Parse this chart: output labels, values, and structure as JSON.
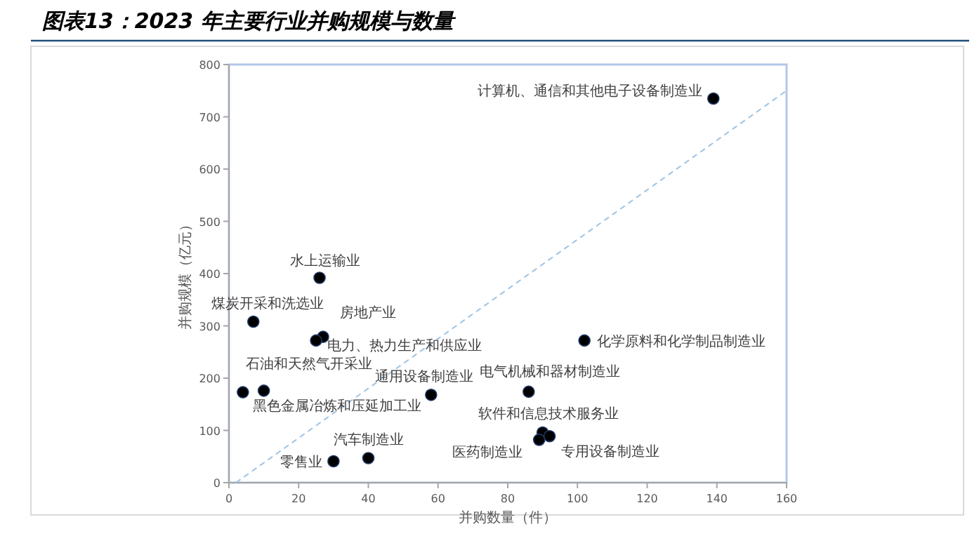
{
  "chart_data": {
    "type": "scatter",
    "title": "图表13：2023 年主要行业并购规模与数量",
    "xlabel": "并购数量（件）",
    "ylabel": "并购规模（亿元）",
    "xlim": [
      0,
      160
    ],
    "xticks": [
      0,
      20,
      40,
      60,
      80,
      100,
      120,
      140,
      160
    ],
    "ylim": [
      0,
      800
    ],
    "yticks": [
      0,
      100,
      200,
      300,
      400,
      500,
      600,
      700,
      800
    ],
    "grid": false,
    "series": [
      {
        "marker": "circle",
        "color": "#000000",
        "x": [
          7,
          4,
          10,
          30,
          26,
          27,
          25,
          40,
          58,
          86,
          90,
          89,
          92,
          102,
          139
        ],
        "values": [
          308,
          173,
          176,
          41,
          392,
          279,
          272,
          47,
          168,
          174,
          96,
          82,
          89,
          272,
          735
        ]
      },
      {
        "type": "line",
        "color": "#9dc3e6",
        "line_style": "dashed",
        "marker": "none",
        "x": [
          2,
          160
        ],
        "values": [
          0,
          750
        ]
      }
    ],
    "annotations": [
      {
        "text": "煤炭开采和洗选业",
        "x": 7,
        "y": 308
      },
      {
        "text": "石油和天然气开采业",
        "x": 4,
        "y": 173
      },
      {
        "text": "黑色金属冶炼和压延加工业",
        "x": 10,
        "y": 176
      },
      {
        "text": "零售业",
        "x": 30,
        "y": 41
      },
      {
        "text": "水上运输业",
        "x": 26,
        "y": 392
      },
      {
        "text": "房地产业",
        "x": 27,
        "y": 279
      },
      {
        "text": "电力、热力生产和供应业",
        "x": 25,
        "y": 272
      },
      {
        "text": "汽车制造业",
        "x": 40,
        "y": 47
      },
      {
        "text": "通用设备制造业",
        "x": 58,
        "y": 168
      },
      {
        "text": "电气机械和器材制造业",
        "x": 86,
        "y": 174
      },
      {
        "text": "软件和信息技术服务业",
        "x": 90,
        "y": 96
      },
      {
        "text": "医药制造业",
        "x": 89,
        "y": 82
      },
      {
        "text": "专用设备制造业",
        "x": 92,
        "y": 89
      },
      {
        "text": "化学原料和化学制品制造业",
        "x": 102,
        "y": 272
      },
      {
        "text": "计算机、通信和其他电子设备制造业",
        "x": 139,
        "y": 735
      }
    ]
  }
}
